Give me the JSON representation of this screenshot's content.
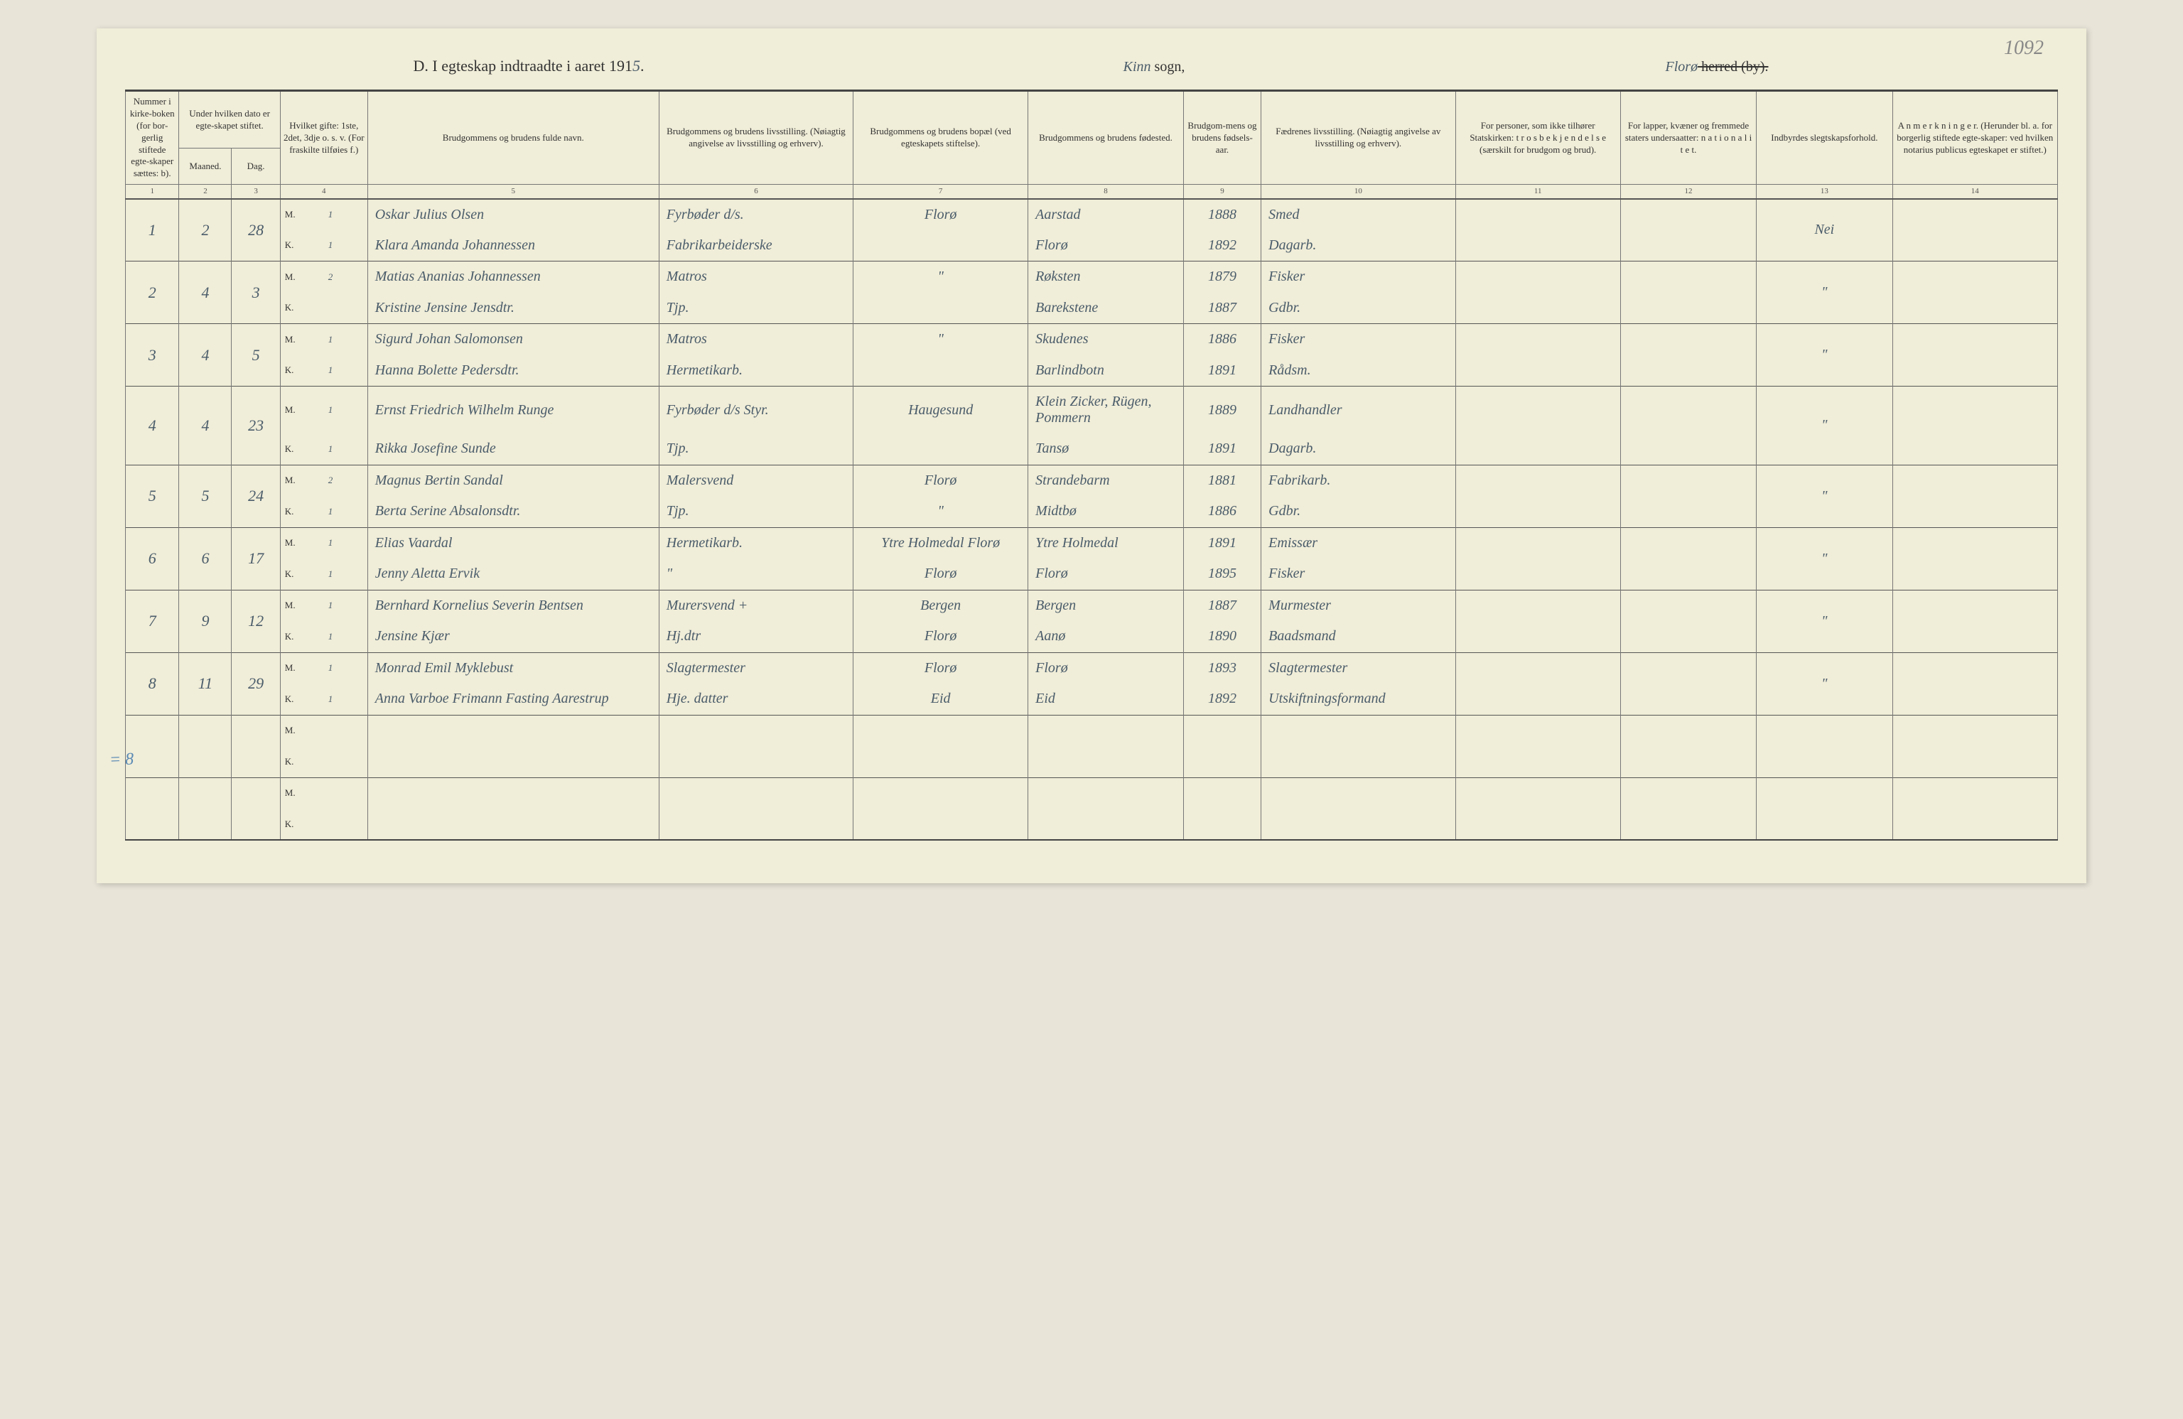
{
  "page_number_hw": "1092",
  "title": {
    "prefix": "D.   I egteskap indtraadte i aaret 191",
    "year_hw": "5",
    "suffix": ".",
    "sogn_hw": "Kinn",
    "sogn_label": " sogn,",
    "herred_hw": "Florø",
    "herred_label": " herred (by)."
  },
  "headers": {
    "c1": "Nummer i kirke-boken (for bor-gerlig stiftede egte-skaper sættes: b).",
    "c2": "Under hvilken dato er egte-skapet stiftet.",
    "c2a": "Maaned.",
    "c2b": "Dag.",
    "c3": "Hvilket gifte: 1ste, 2det, 3dje o. s. v. (For fraskilte tilføies f.)",
    "c4": "Brudgommens og brudens fulde navn.",
    "c5": "Brudgommens og brudens livsstilling. (Nøiagtig angivelse av livsstilling og erhverv).",
    "c6": "Brudgommens og brudens bopæl (ved egteskapets stiftelse).",
    "c7": "Brudgommens og brudens fødested.",
    "c8": "Brudgom-mens og brudens fødsels-aar.",
    "c9": "Fædrenes livsstilling. (Nøiagtig angivelse av livsstilling og erhverv).",
    "c10": "For personer, som ikke tilhører Statskirken: t r o s b e k j e n d e l s e (særskilt for brudgom og brud).",
    "c11": "For lapper, kvæner og fremmede staters undersaatter: n a t i o n a l i t e t.",
    "c12": "Indbyrdes slegtskapsforhold.",
    "c13": "A n m e r k n i n g e r. (Herunder bl. a. for borgerlig stiftede egte-skaper: ved hvilken notarius publicus egteskapet er stiftet.)"
  },
  "colnums": [
    "1",
    "2",
    "3",
    "4",
    "5",
    "6",
    "7",
    "8",
    "9",
    "10",
    "11",
    "12",
    "13",
    "14"
  ],
  "mk": {
    "m": "M.",
    "k": "K."
  },
  "side_note": "= 8",
  "rows": [
    {
      "num": "1",
      "maaned": "2",
      "dag": "28",
      "m": {
        "gift": "1",
        "navn": "Oskar Julius Olsen",
        "stilling": "Fyrbøder d/s.",
        "bopael": "Florø",
        "fodested": "Aarstad",
        "aar": "1888",
        "far": "Smed"
      },
      "k": {
        "gift": "1",
        "navn": "Klara Amanda Johannessen",
        "stilling": "Fabrikarbeiderske",
        "bopael": "",
        "fodested": "Florø",
        "aar": "1892",
        "far": "Dagarb."
      },
      "c12": "",
      "c13": "Nei"
    },
    {
      "num": "2",
      "maaned": "4",
      "dag": "3",
      "m": {
        "gift": "2",
        "navn": "Matias Ananias Johannessen",
        "stilling": "Matros",
        "bopael": "\"",
        "fodested": "Røksten",
        "aar": "1879",
        "far": "Fisker"
      },
      "k": {
        "gift": "",
        "navn": "Kristine Jensine Jensdtr.",
        "stilling": "Tjp.",
        "bopael": "",
        "fodested": "Barekstene",
        "aar": "1887",
        "far": "Gdbr."
      },
      "c12": "",
      "c13": "\""
    },
    {
      "num": "3",
      "maaned": "4",
      "dag": "5",
      "m": {
        "gift": "1",
        "navn": "Sigurd Johan Salomonsen",
        "stilling": "Matros",
        "bopael": "\"",
        "fodested": "Skudenes",
        "aar": "1886",
        "far": "Fisker"
      },
      "k": {
        "gift": "1",
        "navn": "Hanna Bolette Pedersdtr.",
        "stilling": "Hermetikarb.",
        "bopael": "",
        "fodested": "Barlindbotn",
        "aar": "1891",
        "far": "Rådsm."
      },
      "c12": "",
      "c13": "\""
    },
    {
      "num": "4",
      "maaned": "4",
      "dag": "23",
      "m": {
        "gift": "1",
        "navn": "Ernst Friedrich Wilhelm Runge",
        "stilling": "Fyrbøder d/s  Styr.",
        "bopael": "Haugesund",
        "fodested": "Klein Zicker, Rügen, Pommern",
        "aar": "1889",
        "far": "Landhandler"
      },
      "k": {
        "gift": "1",
        "navn": "Rikka Josefine Sunde",
        "stilling": "Tjp.",
        "bopael": "",
        "fodested": "Tansø",
        "aar": "1891",
        "far": "Dagarb."
      },
      "c12": "",
      "c13": "\""
    },
    {
      "num": "5",
      "maaned": "5",
      "dag": "24",
      "m": {
        "gift": "2",
        "navn": "Magnus Bertin Sandal",
        "stilling": "Malersvend",
        "bopael": "Florø",
        "fodested": "Strandebarm",
        "aar": "1881",
        "far": "Fabrikarb."
      },
      "k": {
        "gift": "1",
        "navn": "Berta Serine Absalonsdtr.",
        "stilling": "Tjp.",
        "bopael": "\"",
        "fodested": "Midtbø",
        "aar": "1886",
        "far": "Gdbr."
      },
      "c12": "",
      "c13": "\""
    },
    {
      "num": "6",
      "maaned": "6",
      "dag": "17",
      "m": {
        "gift": "1",
        "navn": "Elias Vaardal",
        "stilling": "Hermetikarb.",
        "bopael": "Ytre Holmedal  Florø",
        "fodested": "Ytre Holmedal",
        "aar": "1891",
        "far": "Emissær"
      },
      "k": {
        "gift": "1",
        "navn": "Jenny Aletta Ervik",
        "stilling": "\"",
        "bopael": "Florø",
        "fodested": "Florø",
        "aar": "1895",
        "far": "Fisker"
      },
      "c12": "",
      "c13": "\""
    },
    {
      "num": "7",
      "maaned": "9",
      "dag": "12",
      "m": {
        "gift": "1",
        "navn": "Bernhard Kornelius Severin Bentsen",
        "stilling": "Murersvend  +",
        "bopael": "Bergen",
        "fodested": "Bergen",
        "aar": "1887",
        "far": "Murmester"
      },
      "k": {
        "gift": "1",
        "navn": "Jensine Kjær",
        "stilling": "Hj.dtr",
        "bopael": "Florø",
        "fodested": "Aanø",
        "aar": "1890",
        "far": "Baadsmand"
      },
      "c12": "",
      "c13": "\""
    },
    {
      "num": "8",
      "maaned": "11",
      "dag": "29",
      "m": {
        "gift": "1",
        "navn": "Monrad Emil Myklebust",
        "stilling": "Slagtermester",
        "bopael": "Florø",
        "fodested": "Florø",
        "aar": "1893",
        "far": "Slagtermester"
      },
      "k": {
        "gift": "1",
        "navn": "Anna Varboe Frimann Fasting Aarestrup",
        "stilling": "Hje. datter",
        "bopael": "Eid",
        "fodested": "Eid",
        "aar": "1892",
        "far": "Utskiftningsformand"
      },
      "c12": "",
      "c13": "\""
    },
    {
      "num": "",
      "maaned": "",
      "dag": "",
      "m": {
        "gift": "",
        "navn": "",
        "stilling": "",
        "bopael": "",
        "fodested": "",
        "aar": "",
        "far": ""
      },
      "k": {
        "gift": "",
        "navn": "",
        "stilling": "",
        "bopael": "",
        "fodested": "",
        "aar": "",
        "far": ""
      },
      "c12": "",
      "c13": ""
    },
    {
      "num": "",
      "maaned": "",
      "dag": "",
      "m": {
        "gift": "",
        "navn": "",
        "stilling": "",
        "bopael": "",
        "fodested": "",
        "aar": "",
        "far": ""
      },
      "k": {
        "gift": "",
        "navn": "",
        "stilling": "",
        "bopael": "",
        "fodested": "",
        "aar": "",
        "far": ""
      },
      "c12": "",
      "c13": ""
    }
  ]
}
